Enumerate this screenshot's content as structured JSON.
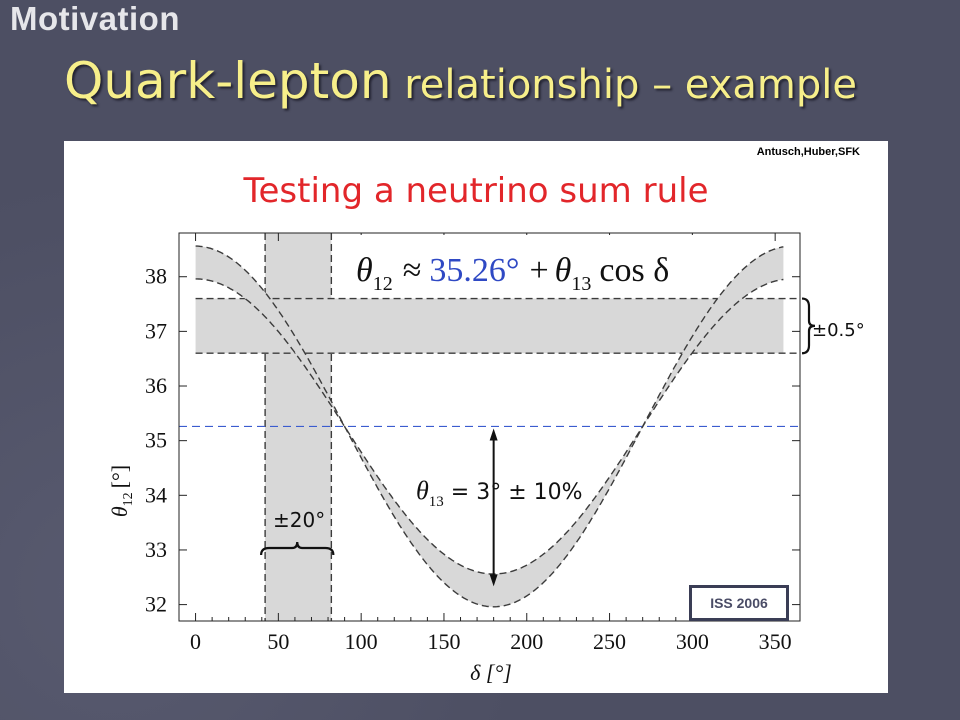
{
  "slide": {
    "section": "Motivation",
    "title_main": "Quark-lepton",
    "title_rest": " relationship – example",
    "credit": "Antusch,Huber,SFK",
    "badge": "ISS 2006"
  },
  "chart_data": {
    "type": "line",
    "title": "Testing a neutrino sum rule",
    "formula": {
      "lhs_sym": "θ",
      "lhs_sub": "12",
      "approx": "≈",
      "const": "35.26°",
      "plus": "+",
      "rhs_sym": "θ",
      "rhs_sub": "13",
      "cos": "cos δ"
    },
    "xlabel": "δ [°]",
    "ylabel_sym": "θ",
    "ylabel_sub": "12",
    "ylabel_unit": "[°]",
    "xlim": [
      -10,
      365
    ],
    "ylim": [
      31.7,
      38.8
    ],
    "xticks": [
      0,
      50,
      100,
      150,
      200,
      250,
      300,
      350
    ],
    "yticks": [
      32,
      33,
      34,
      35,
      36,
      37,
      38
    ],
    "sum_rule": {
      "theta12_0": 35.26,
      "theta13_nominal": 3,
      "theta13_band": [
        2.7,
        3.3
      ]
    },
    "horizontal_band": {
      "y": [
        36.6,
        37.6
      ],
      "label": "±0.5°"
    },
    "vertical_band": {
      "x": [
        42,
        82
      ],
      "label": "±20°"
    },
    "reference_line_y": 35.26,
    "annotation": {
      "sym": "θ",
      "sub": "13",
      "rest": " = 3°  ± 10%",
      "arrow_x": 180
    },
    "grid": false,
    "colors": {
      "band_fill": "#d8d8d8",
      "dashed": "#3c3c3c",
      "reference": "#3b5ccf",
      "formula_const": "#2f49c4",
      "title": "#e2262a"
    }
  }
}
